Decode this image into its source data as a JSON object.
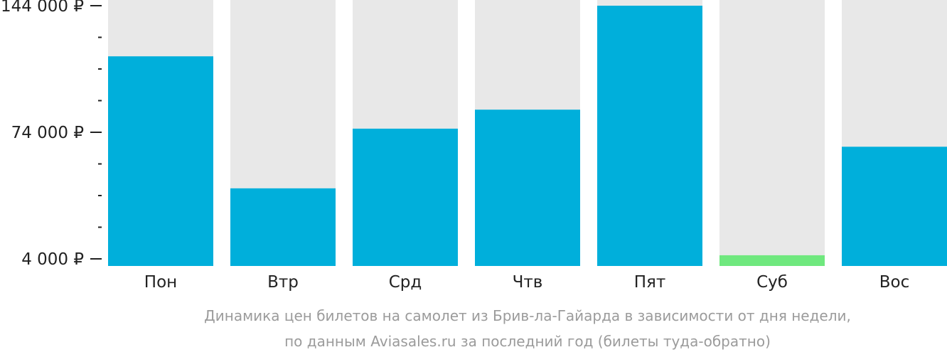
{
  "chart_data": {
    "type": "bar",
    "categories": [
      "Пон",
      "Втр",
      "Срд",
      "Чтв",
      "Пят",
      "Суб",
      "Вос"
    ],
    "values": [
      116000,
      43000,
      76000,
      86500,
      144000,
      6000,
      66000
    ],
    "highlight_index": 5,
    "ylim": [
      0,
      144000
    ],
    "yticks": [
      {
        "value": 4000,
        "label": "4 000 ₽"
      },
      {
        "value": 74000,
        "label": "74 000 ₽"
      },
      {
        "value": 144000,
        "label": "144 000 ₽"
      }
    ],
    "minor_tick_step": 17500,
    "grid": false,
    "legend": "none",
    "colors": {
      "bar": "#00afdb",
      "highlight": "#6fe87e",
      "track": "#e8e8e8",
      "axis_text": "#222222"
    }
  },
  "caption": {
    "line1": "Динамика цен билетов на самолет из Брив-ла-Гайарда в зависимости от дня недели,",
    "line2": "по данным Aviasales.ru за последний год (билеты туда-обратно)"
  }
}
